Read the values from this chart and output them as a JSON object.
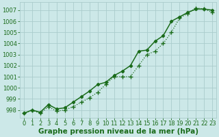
{
  "line_solid": {
    "x": [
      0,
      1,
      2,
      3,
      4,
      5,
      6,
      7,
      8,
      9,
      10,
      11,
      12,
      13,
      14,
      15,
      16,
      17,
      18,
      19,
      20,
      21,
      22,
      23
    ],
    "y": [
      997.7,
      998.0,
      997.8,
      998.5,
      998.1,
      998.2,
      998.7,
      999.2,
      999.7,
      1000.3,
      1000.5,
      1001.1,
      1001.5,
      1002.0,
      1003.3,
      1003.4,
      1004.2,
      1004.7,
      1006.0,
      1006.4,
      1006.8,
      1007.1,
      1007.1,
      1007.0
    ],
    "color": "#1a6b1a",
    "linewidth": 1.1,
    "marker": "D",
    "markersize": 2.2,
    "linestyle": "-"
  },
  "line_dotted": {
    "x": [
      0,
      1,
      2,
      3,
      4,
      5,
      6,
      7,
      8,
      9,
      10,
      11,
      12,
      13,
      14,
      15,
      16,
      17,
      18,
      19,
      20,
      21,
      22,
      23
    ],
    "y": [
      997.7,
      998.0,
      997.7,
      998.3,
      997.9,
      998.0,
      998.3,
      998.7,
      999.1,
      999.6,
      1000.3,
      1001.0,
      1001.0,
      1001.0,
      1002.0,
      1003.0,
      1003.3,
      1004.0,
      1005.0,
      1006.3,
      1006.7,
      1007.2,
      1007.1,
      1006.8
    ],
    "color": "#1a6b1a",
    "linewidth": 0.9,
    "marker": "+",
    "markersize": 4.0,
    "linestyle": ":"
  },
  "background_color": "#cce8e8",
  "grid_color": "#aacccc",
  "xlabel": "Graphe pression niveau de la mer (hPa)",
  "xlabel_fontsize": 7.5,
  "xlabel_color": "#1a6b1a",
  "tick_color": "#1a6b1a",
  "tick_fontsize": 6.0,
  "ylim": [
    997.3,
    1007.7
  ],
  "xlim": [
    -0.5,
    23.5
  ],
  "yticks": [
    998,
    999,
    1000,
    1001,
    1002,
    1003,
    1004,
    1005,
    1006,
    1007
  ],
  "xticks": [
    0,
    1,
    2,
    3,
    4,
    5,
    6,
    7,
    8,
    9,
    10,
    11,
    12,
    13,
    14,
    15,
    16,
    17,
    18,
    19,
    20,
    21,
    22,
    23
  ]
}
